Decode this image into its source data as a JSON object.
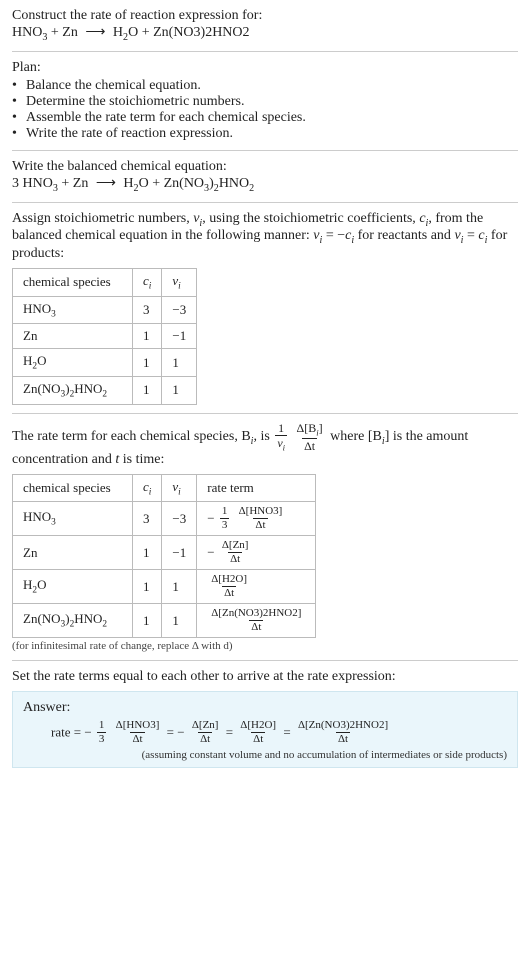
{
  "header": {
    "prompt": "Construct the rate of reaction expression for:",
    "eq_lhs1": "HNO",
    "eq_lhs1_sub": "3",
    "eq_plus1": " + Zn  ",
    "arrow": "⟶",
    "eq_rhs1": "  H",
    "eq_rhs1_sub": "2",
    "eq_rhs2": "O + Zn(NO3)2HNO2"
  },
  "plan": {
    "title": "Plan:",
    "items": [
      "Balance the chemical equation.",
      "Determine the stoichiometric numbers.",
      "Assemble the rate term for each chemical species.",
      "Write the rate of reaction expression."
    ],
    "bullet": "•"
  },
  "balanced": {
    "title": "Write the balanced chemical equation:",
    "coef1": "3 ",
    "sp1": "HNO",
    "sp1_sub": "3",
    "plus1": " + Zn  ",
    "arrow": "⟶",
    "sp2": "  H",
    "sp2_sub": "2",
    "sp3": "O + Zn(NO",
    "sp3_sub1": "3",
    "sp3_mid": ")",
    "sp3_sub2": "2",
    "sp4": "HNO",
    "sp4_sub": "2"
  },
  "assign": {
    "text_a": "Assign stoichiometric numbers, ",
    "nu": "ν",
    "sub_i": "i",
    "text_b": ", using the stoichiometric coefficients, ",
    "c": "c",
    "text_c": ", from the balanced chemical equation in the following manner: ",
    "eq1_lhs": "ν",
    "eq1_rel": " = −",
    "eq1_rhs": "c",
    "text_d": " for reactants and ",
    "eq2_lhs": "ν",
    "eq2_rel": " = ",
    "eq2_rhs": "c",
    "text_e": " for products:"
  },
  "table1": {
    "headers": {
      "h1": "chemical species",
      "h2": "c",
      "h2_sub": "i",
      "h3": "ν",
      "h3_sub": "i"
    },
    "rows": [
      {
        "sp_a": "HNO",
        "sp_sub": "3",
        "sp_b": "",
        "c": "3",
        "nu": "−3"
      },
      {
        "sp_a": "Zn",
        "sp_sub": "",
        "sp_b": "",
        "c": "1",
        "nu": "−1"
      },
      {
        "sp_a": "H",
        "sp_sub": "2",
        "sp_b": "O",
        "c": "1",
        "nu": "1"
      },
      {
        "sp_a": "Zn(NO",
        "sp_sub": "3",
        "sp_b": ")",
        "sp_sub2": "2",
        "sp_c": "HNO",
        "sp_sub3": "2",
        "c": "1",
        "nu": "1"
      }
    ]
  },
  "rateterm": {
    "text_a": "The rate term for each chemical species, B",
    "sub_i": "i",
    "text_b": ", is ",
    "frac1_num": "1",
    "frac1_den_a": "ν",
    "frac1_den_sub": "i",
    "frac2_num_a": "Δ[B",
    "frac2_num_sub": "i",
    "frac2_num_b": "]",
    "frac2_den": "Δt",
    "text_c": " where [B",
    "text_d": "] is the amount concentration and ",
    "t": "t",
    "text_e": " is time:"
  },
  "table2": {
    "headers": {
      "h1": "chemical species",
      "h2": "c",
      "h2_sub": "i",
      "h3": "ν",
      "h3_sub": "i",
      "h4": "rate term"
    },
    "rows": [
      {
        "sp_a": "HNO",
        "sp_sub": "3",
        "sp_b": "",
        "c": "3",
        "nu": "−3",
        "pre": "−",
        "f1n": "1",
        "f1d": "3",
        "f2n": "Δ[HNO3]",
        "f2d": "Δt"
      },
      {
        "sp_a": "Zn",
        "sp_sub": "",
        "sp_b": "",
        "c": "1",
        "nu": "−1",
        "pre": "−",
        "f1n": "",
        "f1d": "",
        "f2n": "Δ[Zn]",
        "f2d": "Δt"
      },
      {
        "sp_a": "H",
        "sp_sub": "2",
        "sp_b": "O",
        "c": "1",
        "nu": "1",
        "pre": "",
        "f1n": "",
        "f1d": "",
        "f2n": "Δ[H2O]",
        "f2d": "Δt"
      },
      {
        "sp_a": "Zn(NO",
        "sp_sub": "3",
        "sp_b": ")",
        "sp_sub2": "2",
        "sp_c": "HNO",
        "sp_sub3": "2",
        "c": "1",
        "nu": "1",
        "pre": "",
        "f1n": "",
        "f1d": "",
        "f2n": "Δ[Zn(NO3)2HNO2]",
        "f2d": "Δt"
      }
    ],
    "note": "(for infinitesimal rate of change, replace Δ with d)"
  },
  "final": {
    "title": "Set the rate terms equal to each other to arrive at the rate expression:"
  },
  "answer": {
    "label": "Answer:",
    "lead": "rate = ",
    "t1_pre": "−",
    "t1_f1n": "1",
    "t1_f1d": "3",
    "t1_f2n": "Δ[HNO3]",
    "t1_f2d": "Δt",
    "eq": " = ",
    "t2_pre": "−",
    "t2_f2n": "Δ[Zn]",
    "t2_f2d": "Δt",
    "t3_f2n": "Δ[H2O]",
    "t3_f2d": "Δt",
    "t4_f2n": "Δ[Zn(NO3)2HNO2]",
    "t4_f2d": "Δt",
    "assumption": "(assuming constant volume and no accumulation of intermediates or side products)"
  }
}
